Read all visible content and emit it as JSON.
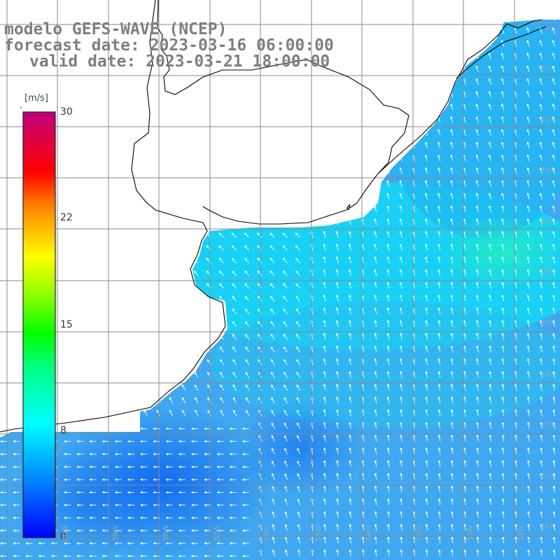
{
  "title": {
    "line1": "modelo GEFS-WAVE (NCEP)",
    "line2": "forecast date: 2023-03-16 06:00:00",
    "line3": "valid date: 2023-03-21 18:00:00"
  },
  "colorbar": {
    "unit": "[m/s]",
    "min": 0,
    "max": 30,
    "ticks": [
      "30",
      "22",
      "15",
      "8",
      "0"
    ],
    "tick_values": [
      30,
      22,
      15,
      8,
      0
    ],
    "colors": [
      "#0000ff",
      "#0080ff",
      "#00ffff",
      "#00ff80",
      "#00ff00",
      "#80ff00",
      "#ffff00",
      "#ff8000",
      "#ff0000",
      "#d0006a",
      "#c0007f"
    ]
  },
  "grid": {
    "lat_labels": [
      "32S",
      "33S",
      "34S",
      "35S",
      "36S",
      "37S",
      "38S",
      "39S",
      "40S",
      "41S"
    ],
    "lon_labels": [
      "60W",
      "59W",
      "58W",
      "57W",
      "56W",
      "55W",
      "54W",
      "53W",
      "52W",
      "51W"
    ]
  },
  "field": {
    "variable": "wind speed",
    "background_color": "#3fa8f0",
    "ocean_color": "#00d8f4",
    "weak_color": "#1288f0",
    "strong_color": "#20f0c8",
    "land_color": "#ffffff",
    "arrow_color": "#ffffff",
    "grid_color": "#888888",
    "coast_color": "#000000"
  }
}
